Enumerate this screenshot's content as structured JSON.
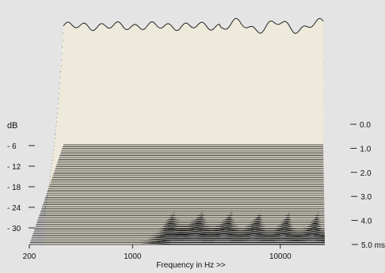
{
  "chart_data": {
    "type": "waterfall",
    "title": "",
    "y_axis": {
      "label": "dB",
      "ticks": [
        {
          "label": "- 6",
          "value": -6
        },
        {
          "label": "- 12",
          "value": -12
        },
        {
          "label": "- 18",
          "value": -18
        },
        {
          "label": "- 24",
          "value": -24
        },
        {
          "label": "- 30",
          "value": -30
        }
      ]
    },
    "x_axis": {
      "label": "Frequency in Hz >>",
      "scale": "log",
      "range": [
        200,
        20000
      ],
      "ticks": [
        {
          "label": "200",
          "value": 200
        },
        {
          "label": "1000",
          "value": 1000
        },
        {
          "label": "10000",
          "value": 10000
        }
      ]
    },
    "z_axis": {
      "ticks": [
        {
          "label": "0.0",
          "value": 0.0
        },
        {
          "label": "1.0",
          "value": 1.0
        },
        {
          "label": "2.0",
          "value": 2.0
        },
        {
          "label": "3.0",
          "value": 3.0
        },
        {
          "label": "4.0",
          "value": 4.0
        },
        {
          "label": "5.0 msec",
          "value": 5.0
        }
      ],
      "range": [
        0,
        5.0
      ]
    },
    "slices": 56,
    "grid": false,
    "legend": "none"
  }
}
